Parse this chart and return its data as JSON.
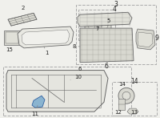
{
  "bg_color": "#f0f0ec",
  "lc": "#aaaaaa",
  "dc": "#666666",
  "bc": "#888888",
  "fig_w": 2.0,
  "fig_h": 1.47,
  "dpi": 100
}
